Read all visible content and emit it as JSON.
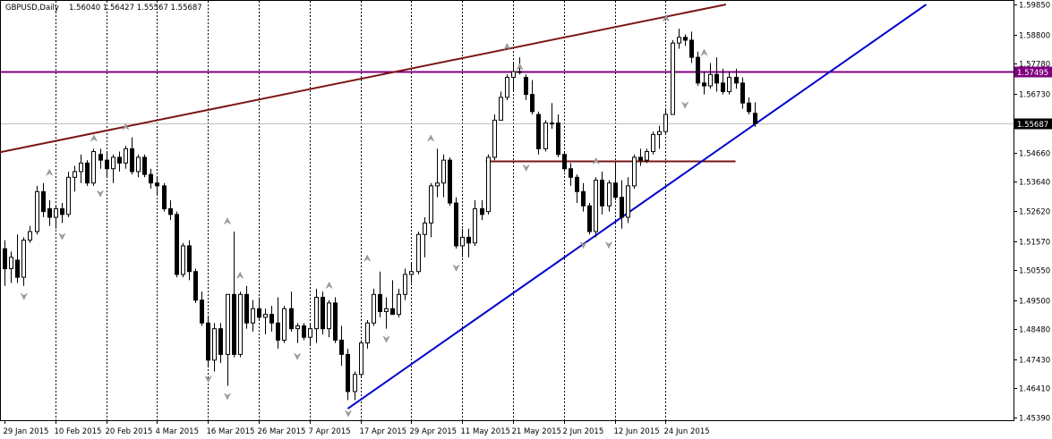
{
  "header": {
    "symbol": "GBPUSD,Daily",
    "ohlc": "1.56040 1.56427 1.55567 1.55687"
  },
  "colors": {
    "background": "#ffffff",
    "border": "#000000",
    "candle": "#000000",
    "current_price_line": "#c0c0c0",
    "upper_trendline": "#7b1515",
    "support_trendline": "#0000cd",
    "resistance_hline": "#800080",
    "support_hline": "#7b1515",
    "fractal": "#a0a0a0"
  },
  "chart_data": {
    "type": "candlestick",
    "symbol": "GBPUSD",
    "timeframe": "Daily",
    "ylim": [
      1.4539,
      1.5985
    ],
    "y_ticks": [
      "1.59850",
      "1.58800",
      "1.57780",
      "1.56730",
      "1.55687",
      "1.54660",
      "1.53640",
      "1.52620",
      "1.51570",
      "1.50550",
      "1.49500",
      "1.48480",
      "1.47430",
      "1.46410",
      "1.45390"
    ],
    "x_ticks": [
      {
        "label": "29 Jan 2015",
        "bar": 0
      },
      {
        "label": "10 Feb 2015",
        "bar": 8
      },
      {
        "label": "20 Feb 2015",
        "bar": 16
      },
      {
        "label": "4 Mar 2015",
        "bar": 24
      },
      {
        "label": "16 Mar 2015",
        "bar": 32
      },
      {
        "label": "26 Mar 2015",
        "bar": 40
      },
      {
        "label": "7 Apr 2015",
        "bar": 48
      },
      {
        "label": "17 Apr 2015",
        "bar": 56
      },
      {
        "label": "29 Apr 2015",
        "bar": 64
      },
      {
        "label": "11 May 2015",
        "bar": 72
      },
      {
        "label": "21 May 2015",
        "bar": 80
      },
      {
        "label": "2 Jun 2015",
        "bar": 88
      },
      {
        "label": "12 Jun 2015",
        "bar": 96
      },
      {
        "label": "24 Jun 2015",
        "bar": 104
      }
    ],
    "current_price": 1.55687,
    "current_price_label": "1.55687",
    "resistance_level": 1.57495,
    "resistance_label": "1.57495",
    "support_level": 1.5436,
    "support_start_bar": 76,
    "support_end_bar": 115,
    "candles": [
      [
        1.513,
        1.516,
        1.5,
        1.506
      ],
      [
        1.506,
        1.512,
        1.501,
        1.51
      ],
      [
        1.509,
        1.518,
        1.501,
        1.503
      ],
      [
        1.503,
        1.517,
        1.5,
        1.516
      ],
      [
        1.516,
        1.521,
        1.515,
        1.519
      ],
      [
        1.519,
        1.535,
        1.518,
        1.533
      ],
      [
        1.533,
        1.536,
        1.524,
        1.526
      ],
      [
        1.527,
        1.53,
        1.521,
        1.524
      ],
      [
        1.524,
        1.528,
        1.52,
        1.527
      ],
      [
        1.527,
        1.529,
        1.522,
        1.525
      ],
      [
        1.525,
        1.54,
        1.524,
        1.538
      ],
      [
        1.538,
        1.542,
        1.533,
        1.54
      ],
      [
        1.54,
        1.546,
        1.536,
        1.543
      ],
      [
        1.543,
        1.544,
        1.535,
        1.536
      ],
      [
        1.536,
        1.548,
        1.535,
        1.547
      ],
      [
        1.546,
        1.548,
        1.541,
        1.544
      ],
      [
        1.544,
        1.547,
        1.538,
        1.541
      ],
      [
        1.541,
        1.546,
        1.536,
        1.545
      ],
      [
        1.545,
        1.547,
        1.54,
        1.543
      ],
      [
        1.543,
        1.549,
        1.541,
        1.548
      ],
      [
        1.548,
        1.552,
        1.539,
        1.54
      ],
      [
        1.54,
        1.546,
        1.538,
        1.545
      ],
      [
        1.545,
        1.546,
        1.538,
        1.539
      ],
      [
        1.539,
        1.541,
        1.534,
        1.536
      ],
      [
        1.536,
        1.538,
        1.532,
        1.535
      ],
      [
        1.535,
        1.536,
        1.526,
        1.527
      ],
      [
        1.527,
        1.53,
        1.523,
        1.525
      ],
      [
        1.525,
        1.526,
        1.503,
        1.504
      ],
      [
        1.504,
        1.515,
        1.503,
        1.514
      ],
      [
        1.514,
        1.516,
        1.502,
        1.505
      ],
      [
        1.505,
        1.506,
        1.494,
        1.495
      ],
      [
        1.495,
        1.498,
        1.486,
        1.487
      ],
      [
        1.487,
        1.489,
        1.472,
        1.474
      ],
      [
        1.474,
        1.487,
        1.47,
        1.485
      ],
      [
        1.485,
        1.487,
        1.473,
        1.476
      ],
      [
        1.476,
        1.496,
        1.465,
        1.497
      ],
      [
        1.497,
        1.519,
        1.475,
        1.476
      ],
      [
        1.476,
        1.498,
        1.475,
        1.497
      ],
      [
        1.497,
        1.5,
        1.485,
        1.487
      ],
      [
        1.487,
        1.495,
        1.484,
        1.492
      ],
      [
        1.492,
        1.496,
        1.488,
        1.489
      ],
      [
        1.489,
        1.492,
        1.483,
        1.49
      ],
      [
        1.49,
        1.493,
        1.484,
        1.487
      ],
      [
        1.487,
        1.496,
        1.478,
        1.481
      ],
      [
        1.481,
        1.493,
        1.48,
        1.492
      ],
      [
        1.492,
        1.498,
        1.484,
        1.485
      ],
      [
        1.485,
        1.487,
        1.48,
        1.486
      ],
      [
        1.486,
        1.487,
        1.481,
        1.482
      ],
      [
        1.482,
        1.487,
        1.479,
        1.485
      ],
      [
        1.485,
        1.499,
        1.48,
        1.496
      ],
      [
        1.496,
        1.498,
        1.483,
        1.485
      ],
      [
        1.485,
        1.495,
        1.482,
        1.494
      ],
      [
        1.494,
        1.496,
        1.48,
        1.481
      ],
      [
        1.481,
        1.486,
        1.472,
        1.476
      ],
      [
        1.476,
        1.478,
        1.46,
        1.463
      ],
      [
        1.463,
        1.47,
        1.46,
        1.469
      ],
      [
        1.469,
        1.481,
        1.468,
        1.48
      ],
      [
        1.48,
        1.488,
        1.478,
        1.487
      ],
      [
        1.487,
        1.499,
        1.486,
        1.497
      ],
      [
        1.497,
        1.505,
        1.489,
        1.491
      ],
      [
        1.491,
        1.496,
        1.485,
        1.492
      ],
      [
        1.492,
        1.502,
        1.49,
        1.49
      ],
      [
        1.49,
        1.499,
        1.489,
        1.497
      ],
      [
        1.497,
        1.506,
        1.495,
        1.504
      ],
      [
        1.504,
        1.508,
        1.501,
        1.505
      ],
      [
        1.505,
        1.519,
        1.504,
        1.518
      ],
      [
        1.518,
        1.524,
        1.51,
        1.522
      ],
      [
        1.522,
        1.536,
        1.517,
        1.535
      ],
      [
        1.535,
        1.548,
        1.531,
        1.536
      ],
      [
        1.536,
        1.546,
        1.531,
        1.544
      ],
      [
        1.544,
        1.545,
        1.528,
        1.529
      ],
      [
        1.529,
        1.531,
        1.513,
        1.514
      ],
      [
        1.514,
        1.52,
        1.51,
        1.517
      ],
      [
        1.517,
        1.52,
        1.51,
        1.515
      ],
      [
        1.515,
        1.53,
        1.514,
        1.527
      ],
      [
        1.527,
        1.53,
        1.523,
        1.525
      ],
      [
        1.526,
        1.546,
        1.525,
        1.545
      ],
      [
        1.545,
        1.56,
        1.544,
        1.558
      ],
      [
        1.558,
        1.568,
        1.558,
        1.566
      ],
      [
        1.566,
        1.574,
        1.565,
        1.573
      ],
      [
        1.573,
        1.578,
        1.568,
        1.575
      ],
      [
        1.575,
        1.58,
        1.574,
        1.575
      ],
      [
        1.573,
        1.574,
        1.565,
        1.567
      ],
      [
        1.567,
        1.572,
        1.56,
        1.561
      ],
      [
        1.56,
        1.561,
        1.546,
        1.548
      ],
      [
        1.548,
        1.558,
        1.547,
        1.557
      ],
      [
        1.557,
        1.564,
        1.555,
        1.557
      ],
      [
        1.557,
        1.56,
        1.545,
        1.546
      ],
      [
        1.546,
        1.547,
        1.54,
        1.541
      ],
      [
        1.541,
        1.543,
        1.535,
        1.538
      ],
      [
        1.538,
        1.539,
        1.529,
        1.533
      ],
      [
        1.533,
        1.536,
        1.526,
        1.528
      ],
      [
        1.528,
        1.529,
        1.518,
        1.519
      ],
      [
        1.519,
        1.538,
        1.517,
        1.537
      ],
      [
        1.537,
        1.54,
        1.525,
        1.528
      ],
      [
        1.528,
        1.537,
        1.526,
        1.536
      ],
      [
        1.536,
        1.543,
        1.53,
        1.531
      ],
      [
        1.531,
        1.537,
        1.52,
        1.524
      ],
      [
        1.524,
        1.538,
        1.522,
        1.535
      ],
      [
        1.535,
        1.546,
        1.534,
        1.545
      ],
      [
        1.545,
        1.548,
        1.542,
        1.544
      ],
      [
        1.544,
        1.548,
        1.543,
        1.547
      ],
      [
        1.547,
        1.554,
        1.546,
        1.553
      ],
      [
        1.553,
        1.556,
        1.548,
        1.554
      ],
      [
        1.554,
        1.562,
        1.553,
        1.56
      ],
      [
        1.56,
        1.586,
        1.56,
        1.585
      ],
      [
        1.585,
        1.59,
        1.583,
        1.587
      ],
      [
        1.587,
        1.588,
        1.584,
        1.586
      ],
      [
        1.586,
        1.589,
        1.578,
        1.58
      ],
      [
        1.58,
        1.582,
        1.57,
        1.571
      ],
      [
        1.571,
        1.575,
        1.567,
        1.57
      ],
      [
        1.57,
        1.578,
        1.569,
        1.574
      ],
      [
        1.574,
        1.58,
        1.568,
        1.571
      ],
      [
        1.571,
        1.576,
        1.567,
        1.568
      ],
      [
        1.568,
        1.575,
        1.567,
        1.573
      ],
      [
        1.573,
        1.576,
        1.569,
        1.571
      ],
      [
        1.571,
        1.573,
        1.562,
        1.564
      ],
      [
        1.564,
        1.566,
        1.56,
        1.561
      ],
      [
        1.5604,
        1.56427,
        1.55567,
        1.55687
      ]
    ],
    "fractals_up": [
      {
        "bar": 7,
        "price": 1.538
      },
      {
        "bar": 14,
        "price": 1.55
      },
      {
        "bar": 19,
        "price": 1.554
      },
      {
        "bar": 35,
        "price": 1.521
      },
      {
        "bar": 37,
        "price": 1.502
      },
      {
        "bar": 51,
        "price": 1.4985
      },
      {
        "bar": 57,
        "price": 1.508
      },
      {
        "bar": 67,
        "price": 1.55
      },
      {
        "bar": 79,
        "price": 1.582
      },
      {
        "bar": 81,
        "price": 1.575
      },
      {
        "bar": 93,
        "price": 1.542
      },
      {
        "bar": 104,
        "price": 1.592
      },
      {
        "bar": 110,
        "price": 1.58
      }
    ],
    "fractals_down": [
      {
        "bar": 3,
        "price": 1.498
      },
      {
        "bar": 9,
        "price": 1.519
      },
      {
        "bar": 15,
        "price": 1.534
      },
      {
        "bar": 32,
        "price": 1.469
      },
      {
        "bar": 35,
        "price": 1.463
      },
      {
        "bar": 46,
        "price": 1.477
      },
      {
        "bar": 54,
        "price": 1.457
      },
      {
        "bar": 60,
        "price": 1.483
      },
      {
        "bar": 71,
        "price": 1.508
      },
      {
        "bar": 82,
        "price": 1.543
      },
      {
        "bar": 91,
        "price": 1.516
      },
      {
        "bar": 95,
        "price": 1.516
      },
      {
        "bar": 107,
        "price": 1.565
      }
    ],
    "trendlines": [
      {
        "name": "upper-channel",
        "bar1": -1.3,
        "price1": 1.5465,
        "bar2": 113.5,
        "price2": 1.5985
      },
      {
        "name": "support",
        "bar1": 54,
        "price1": 1.457,
        "bar2": 145,
        "price2": 1.5985
      }
    ]
  }
}
